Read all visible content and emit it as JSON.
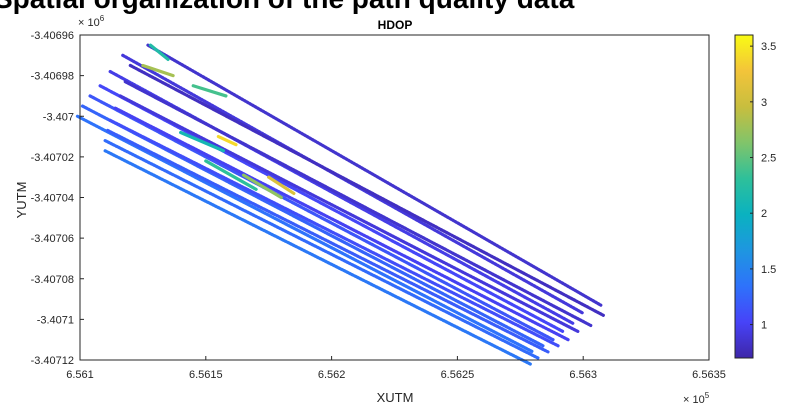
{
  "header_text": "Spatial organization of the path quality data",
  "chart_data": {
    "type": "scatter",
    "title": "HDOP",
    "xlabel": "XUTM",
    "ylabel": "YUTM",
    "x_exponent_label": "× 10",
    "x_exponent": "5",
    "y_exponent_label": "× 10",
    "y_exponent": "6",
    "xlim": [
      6.561,
      6.5635
    ],
    "ylim": [
      -3.40712,
      -3.40696
    ],
    "x_ticks": [
      6.561,
      6.5615,
      6.562,
      6.5625,
      6.563,
      6.5635
    ],
    "x_tick_labels": [
      "6.561",
      "6.5615",
      "6.562",
      "6.5625",
      "6.563",
      "6.5635"
    ],
    "y_ticks": [
      -3.40696,
      -3.40698,
      -3.407,
      -3.40702,
      -3.40704,
      -3.40706,
      -3.40708,
      -3.4071,
      -3.40712
    ],
    "y_tick_labels": [
      "-3.40696",
      "-3.40698",
      "-3.407",
      "-3.40702",
      "-3.40704",
      "-3.40706",
      "-3.40708",
      "-3.4071",
      "-3.40712"
    ],
    "grid": false,
    "colorbar": {
      "colormap": "parula",
      "range": [
        0.7,
        3.6
      ],
      "ticks": [
        1,
        1.5,
        2,
        2.5,
        3,
        3.5
      ],
      "tick_labels": [
        "1",
        "1.5",
        "2",
        "2.5",
        "3",
        "3.5"
      ],
      "colors": [
        "#3e26a8",
        "#4743f8",
        "#2e72fb",
        "#1e96e0",
        "#0ab2c0",
        "#2ec09a",
        "#81c46a",
        "#c8be3e",
        "#f3c43a",
        "#f9fb14"
      ]
    },
    "tracks": [
      {
        "points": [
          [
            6.56127,
            -3.406965
          ],
          [
            6.56307,
            -3.407093
          ]
        ],
        "hdop": 0.85
      },
      {
        "points": [
          [
            6.56117,
            -3.40697
          ],
          [
            6.563,
            -3.407097
          ]
        ],
        "hdop": 0.9
      },
      {
        "points": [
          [
            6.56112,
            -3.406978
          ],
          [
            6.56296,
            -3.407102
          ]
        ],
        "hdop": 0.95
      },
      {
        "points": [
          [
            6.56108,
            -3.406985
          ],
          [
            6.56292,
            -3.407106
          ]
        ],
        "hdop": 1.05
      },
      {
        "points": [
          [
            6.56104,
            -3.40699
          ],
          [
            6.56288,
            -3.40711
          ]
        ],
        "hdop": 1.15
      },
      {
        "points": [
          [
            6.56101,
            -3.406995
          ],
          [
            6.56284,
            -3.407113
          ]
        ],
        "hdop": 1.25
      },
      {
        "points": [
          [
            6.56099,
            -3.407
          ],
          [
            6.5628,
            -3.407116
          ]
        ],
        "hdop": 1.35
      },
      {
        "points": [
          [
            6.5612,
            -3.406975
          ],
          [
            6.56308,
            -3.407098
          ]
        ],
        "hdop": 0.8
      },
      {
        "points": [
          [
            6.56118,
            -3.406983
          ],
          [
            6.56303,
            -3.407103
          ]
        ],
        "hdop": 0.85
      },
      {
        "points": [
          [
            6.56116,
            -3.40699
          ],
          [
            6.56298,
            -3.407106
          ]
        ],
        "hdop": 0.9
      },
      {
        "points": [
          [
            6.56114,
            -3.406996
          ],
          [
            6.56294,
            -3.40711
          ]
        ],
        "hdop": 1.0
      },
      {
        "points": [
          [
            6.56112,
            -3.407002
          ],
          [
            6.5629,
            -3.407113
          ]
        ],
        "hdop": 1.1
      },
      {
        "points": [
          [
            6.56111,
            -3.407007
          ],
          [
            6.56286,
            -3.407116
          ]
        ],
        "hdop": 1.2
      },
      {
        "points": [
          [
            6.5611,
            -3.407012
          ],
          [
            6.56282,
            -3.407119
          ]
        ],
        "hdop": 1.3
      },
      {
        "points": [
          [
            6.5611,
            -3.407017
          ],
          [
            6.56279,
            -3.407122
          ]
        ],
        "hdop": 1.4
      }
    ],
    "highlights": [
      {
        "points": [
          [
            6.56125,
            -3.406975
          ],
          [
            6.56137,
            -3.40698
          ]
        ],
        "hdop": 2.8
      },
      {
        "points": [
          [
            6.56128,
            -3.406965
          ],
          [
            6.56135,
            -3.406972
          ]
        ],
        "hdop": 2.2
      },
      {
        "points": [
          [
            6.56145,
            -3.406985
          ],
          [
            6.56158,
            -3.40699
          ]
        ],
        "hdop": 2.4
      },
      {
        "points": [
          [
            6.5614,
            -3.407008
          ],
          [
            6.56157,
            -3.407017
          ]
        ],
        "hdop": 2.1
      },
      {
        "points": [
          [
            6.5615,
            -3.407022
          ],
          [
            6.5617,
            -3.407036
          ]
        ],
        "hdop": 2.3
      },
      {
        "points": [
          [
            6.56165,
            -3.407029
          ],
          [
            6.5618,
            -3.40704
          ]
        ],
        "hdop": 2.7
      },
      {
        "points": [
          [
            6.56175,
            -3.40703
          ],
          [
            6.56185,
            -3.407038
          ]
        ],
        "hdop": 3.1
      },
      {
        "points": [
          [
            6.56155,
            -3.40701
          ],
          [
            6.56162,
            -3.407014
          ]
        ],
        "hdop": 3.4
      }
    ]
  }
}
